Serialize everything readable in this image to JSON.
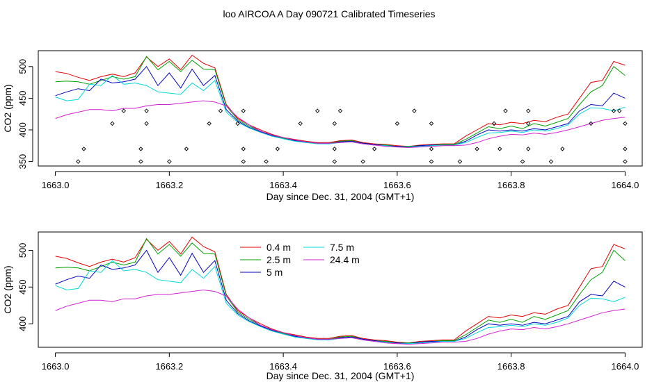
{
  "title": "loo AIRCOA A  Day 090721  Calibrated Timeseries",
  "colors": {
    "0.4 m": "#e00000",
    "2.5 m": "#00a000",
    "5 m": "#0000c0",
    "7.5 m": "#00d8d8",
    "24.4 m": "#d020d0",
    "markers": "#000000"
  },
  "chart_data": [
    {
      "type": "line",
      "xlabel": "Day since Dec. 31, 2004 (GMT+1)",
      "ylabel": "CO2 (ppm)",
      "xlim": [
        1662.97,
        1664.03
      ],
      "ylim": [
        343,
        525
      ],
      "xticks": [
        1663.0,
        1663.2,
        1663.4,
        1663.6,
        1663.8,
        1664.0
      ],
      "xtick_labels": [
        "1663.0",
        "1663.2",
        "1663.4",
        "1663.6",
        "1663.8",
        "1664.0"
      ],
      "yticks": [
        350,
        400,
        450,
        500
      ],
      "ytick_labels": [
        "350",
        "400",
        "450",
        "500"
      ],
      "grid": false,
      "legend": null,
      "series": [
        {
          "name": "0.4 m",
          "x": [
            1663.0,
            1663.02,
            1663.04,
            1663.06,
            1663.08,
            1663.1,
            1663.12,
            1663.14,
            1663.16,
            1663.18,
            1663.2,
            1663.22,
            1663.24,
            1663.26,
            1663.28,
            1663.3,
            1663.32,
            1663.34,
            1663.36,
            1663.38,
            1663.4,
            1663.42,
            1663.44,
            1663.46,
            1663.48,
            1663.5,
            1663.52,
            1663.54,
            1663.56,
            1663.58,
            1663.6,
            1663.62,
            1663.64,
            1663.66,
            1663.68,
            1663.7,
            1663.72,
            1663.74,
            1663.76,
            1663.78,
            1663.8,
            1663.82,
            1663.84,
            1663.86,
            1663.88,
            1663.9,
            1663.92,
            1663.94,
            1663.96,
            1663.98,
            1664.0
          ],
          "values": [
            492,
            489,
            483,
            478,
            484,
            488,
            484,
            490,
            515,
            500,
            512,
            495,
            518,
            505,
            498,
            440,
            418,
            408,
            400,
            393,
            388,
            385,
            382,
            380,
            380,
            383,
            384,
            380,
            378,
            377,
            375,
            374,
            376,
            377,
            378,
            378,
            390,
            400,
            410,
            408,
            412,
            410,
            415,
            413,
            420,
            425,
            450,
            475,
            478,
            508,
            502
          ]
        },
        {
          "name": "2.5 m",
          "x": [
            1663.0,
            1663.02,
            1663.04,
            1663.06,
            1663.08,
            1663.1,
            1663.12,
            1663.14,
            1663.16,
            1663.18,
            1663.2,
            1663.22,
            1663.24,
            1663.26,
            1663.28,
            1663.3,
            1663.32,
            1663.34,
            1663.36,
            1663.38,
            1663.4,
            1663.42,
            1663.44,
            1663.46,
            1663.48,
            1663.5,
            1663.52,
            1663.54,
            1663.56,
            1663.58,
            1663.6,
            1663.62,
            1663.64,
            1663.66,
            1663.68,
            1663.7,
            1663.72,
            1663.74,
            1663.76,
            1663.78,
            1663.8,
            1663.82,
            1663.84,
            1663.86,
            1663.88,
            1663.9,
            1663.92,
            1663.94,
            1663.96,
            1663.98,
            1664.0
          ],
          "values": [
            476,
            477,
            476,
            472,
            478,
            484,
            480,
            484,
            516,
            495,
            508,
            492,
            510,
            496,
            495,
            438,
            416,
            406,
            398,
            392,
            387,
            384,
            381,
            379,
            379,
            382,
            383,
            379,
            377,
            376,
            374,
            374,
            375,
            376,
            377,
            377,
            385,
            395,
            405,
            402,
            406,
            402,
            410,
            406,
            412,
            418,
            440,
            460,
            470,
            500,
            486
          ]
        },
        {
          "name": "5 m",
          "x": [
            1663.0,
            1663.02,
            1663.04,
            1663.06,
            1663.08,
            1663.1,
            1663.12,
            1663.14,
            1663.16,
            1663.18,
            1663.2,
            1663.22,
            1663.24,
            1663.26,
            1663.28,
            1663.3,
            1663.32,
            1663.34,
            1663.36,
            1663.38,
            1663.4,
            1663.42,
            1663.44,
            1663.46,
            1663.48,
            1663.5,
            1663.52,
            1663.54,
            1663.56,
            1663.58,
            1663.6,
            1663.62,
            1663.64,
            1663.66,
            1663.68,
            1663.7,
            1663.72,
            1663.74,
            1663.76,
            1663.78,
            1663.8,
            1663.82,
            1663.84,
            1663.86,
            1663.88,
            1663.9,
            1663.92,
            1663.94,
            1663.96,
            1663.98,
            1664.0
          ],
          "values": [
            454,
            460,
            465,
            462,
            480,
            474,
            476,
            480,
            500,
            470,
            490,
            466,
            496,
            470,
            486,
            432,
            414,
            404,
            397,
            391,
            386,
            383,
            380,
            379,
            378,
            381,
            382,
            379,
            377,
            375,
            374,
            373,
            375,
            376,
            376,
            376,
            382,
            392,
            400,
            398,
            400,
            398,
            402,
            400,
            405,
            410,
            430,
            440,
            438,
            458,
            450
          ]
        },
        {
          "name": "7.5 m",
          "x": [
            1663.0,
            1663.02,
            1663.04,
            1663.06,
            1663.08,
            1663.1,
            1663.12,
            1663.14,
            1663.16,
            1663.18,
            1663.2,
            1663.22,
            1663.24,
            1663.26,
            1663.28,
            1663.3,
            1663.32,
            1663.34,
            1663.36,
            1663.38,
            1663.4,
            1663.42,
            1663.44,
            1663.46,
            1663.48,
            1663.5,
            1663.52,
            1663.54,
            1663.56,
            1663.58,
            1663.6,
            1663.62,
            1663.64,
            1663.66,
            1663.68,
            1663.7,
            1663.72,
            1663.74,
            1663.76,
            1663.78,
            1663.8,
            1663.82,
            1663.84,
            1663.86,
            1663.88,
            1663.9,
            1663.92,
            1663.94,
            1663.96,
            1663.98,
            1664.0
          ],
          "values": [
            452,
            446,
            448,
            472,
            470,
            486,
            472,
            474,
            470,
            460,
            458,
            456,
            474,
            462,
            478,
            428,
            412,
            403,
            396,
            390,
            386,
            382,
            380,
            378,
            378,
            380,
            381,
            378,
            376,
            375,
            373,
            373,
            374,
            375,
            376,
            376,
            380,
            388,
            395,
            396,
            398,
            396,
            400,
            398,
            402,
            408,
            425,
            435,
            434,
            430,
            436
          ]
        },
        {
          "name": "24.4 m",
          "x": [
            1663.0,
            1663.02,
            1663.04,
            1663.06,
            1663.08,
            1663.1,
            1663.12,
            1663.14,
            1663.16,
            1663.18,
            1663.2,
            1663.22,
            1663.24,
            1663.26,
            1663.28,
            1663.3,
            1663.32,
            1663.34,
            1663.36,
            1663.38,
            1663.4,
            1663.42,
            1663.44,
            1663.46,
            1663.48,
            1663.5,
            1663.52,
            1663.54,
            1663.56,
            1663.58,
            1663.6,
            1663.62,
            1663.64,
            1663.66,
            1663.68,
            1663.7,
            1663.72,
            1663.74,
            1663.76,
            1663.78,
            1663.8,
            1663.82,
            1663.84,
            1663.86,
            1663.88,
            1663.9,
            1663.92,
            1663.94,
            1663.96,
            1663.98,
            1664.0
          ],
          "values": [
            418,
            424,
            428,
            432,
            432,
            430,
            434,
            434,
            438,
            440,
            440,
            442,
            444,
            446,
            444,
            438,
            420,
            408,
            398,
            392,
            388,
            384,
            381,
            379,
            379,
            380,
            381,
            378,
            376,
            374,
            373,
            372,
            373,
            374,
            375,
            375,
            376,
            380,
            386,
            390,
            393,
            392,
            395,
            393,
            396,
            400,
            405,
            410,
            415,
            418,
            420
          ]
        }
      ],
      "markers": {
        "type": "scatter",
        "x": [
          1663.04,
          1663.05,
          1663.1,
          1663.12,
          1663.15,
          1663.15,
          1663.16,
          1663.16,
          1663.2,
          1663.23,
          1663.27,
          1663.29,
          1663.32,
          1663.33,
          1663.33,
          1663.33,
          1663.37,
          1663.39,
          1663.43,
          1663.46,
          1663.49,
          1663.49,
          1663.49,
          1663.5,
          1663.54,
          1663.56,
          1663.6,
          1663.63,
          1663.66,
          1663.66,
          1663.66,
          1663.71,
          1663.74,
          1663.77,
          1663.78,
          1663.79,
          1663.82,
          1663.83,
          1663.83,
          1663.83,
          1663.87,
          1663.89,
          1663.94,
          1663.98,
          1663.99,
          1664.0,
          1664.0,
          1664.0
        ],
        "y": [
          350,
          370,
          410,
          430,
          350,
          370,
          410,
          430,
          350,
          370,
          410,
          430,
          410,
          350,
          370,
          430,
          350,
          370,
          410,
          430,
          350,
          370,
          410,
          430,
          350,
          370,
          410,
          430,
          350,
          370,
          410,
          350,
          370,
          410,
          370,
          430,
          350,
          370,
          410,
          430,
          350,
          370,
          410,
          430,
          430,
          370,
          410,
          350
        ]
      }
    },
    {
      "type": "line",
      "xlabel": "Day since Dec. 31, 2004 (GMT+1)",
      "ylabel": "CO2 (ppm)",
      "xlim": [
        1662.97,
        1664.03
      ],
      "ylim": [
        368,
        525
      ],
      "xticks": [
        1663.0,
        1663.2,
        1663.4,
        1663.6,
        1663.8,
        1664.0
      ],
      "xtick_labels": [
        "1663.0",
        "1663.2",
        "1663.4",
        "1663.6",
        "1663.8",
        "1664.0"
      ],
      "yticks": [
        400,
        450,
        500
      ],
      "ytick_labels": [
        "400",
        "450",
        "500"
      ],
      "grid": false,
      "legend": "top-center",
      "legend_entries": [
        "0.4 m",
        "2.5 m",
        "5 m",
        "7.5 m",
        "24.4 m"
      ]
    }
  ]
}
